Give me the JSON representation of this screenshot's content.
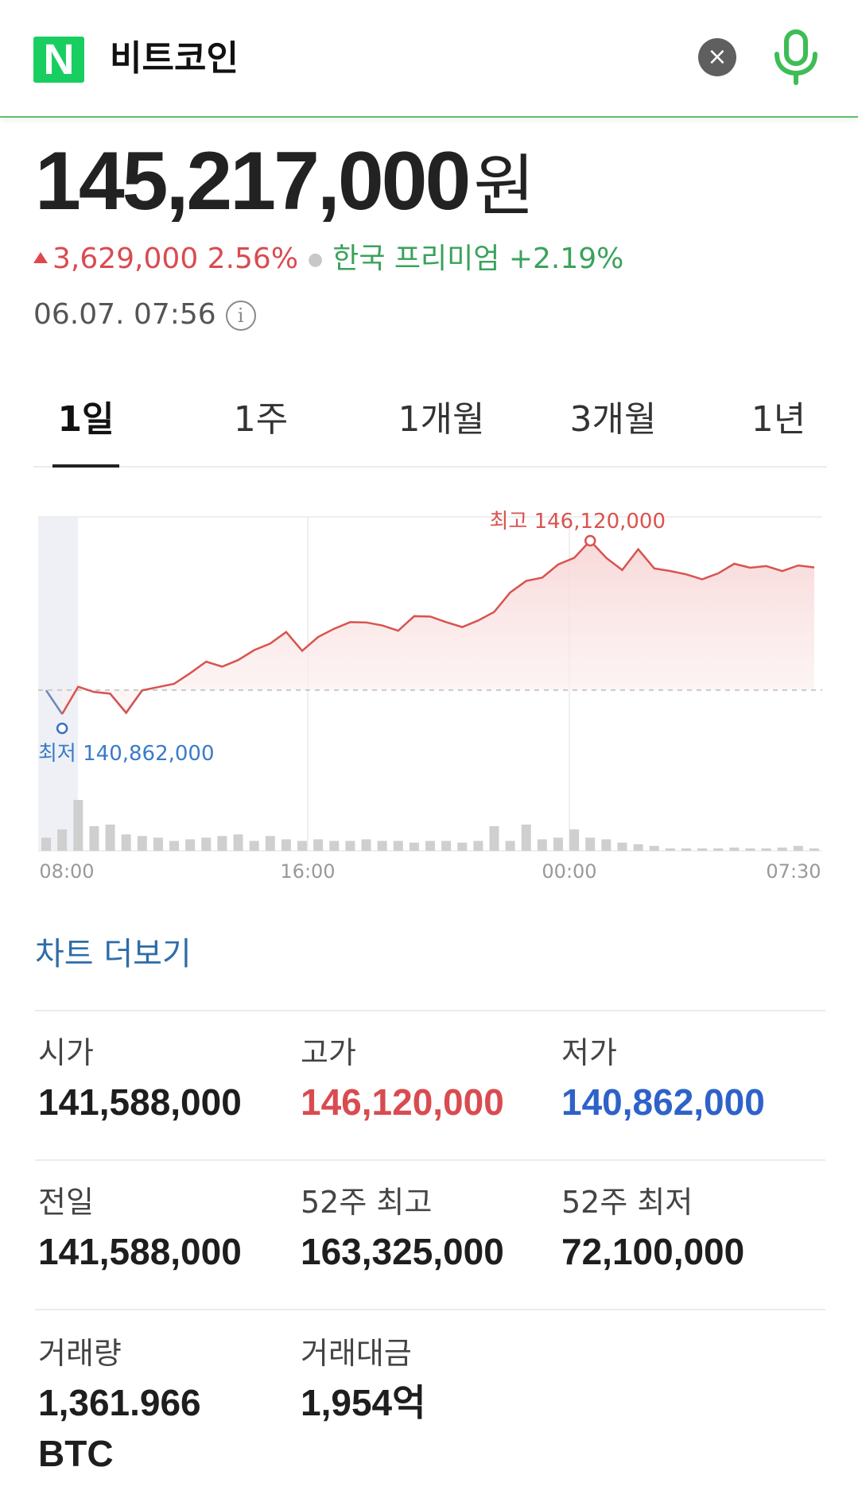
{
  "header": {
    "logo_letter": "N",
    "search_query": "비트코인",
    "clear_symbol": "×"
  },
  "price": {
    "value": "145,217,000",
    "unit": "원",
    "change": "3,629,000 2.56%",
    "premium": "한국 프리미엄 +2.19%",
    "timestamp": "06.07. 07:56",
    "info_symbol": "i"
  },
  "tabs": [
    {
      "label": "1일",
      "active": true
    },
    {
      "label": "1주",
      "active": false
    },
    {
      "label": "1개월",
      "active": false
    },
    {
      "label": "3개월",
      "active": false
    },
    {
      "label": "1년",
      "active": false
    }
  ],
  "chart_data": {
    "type": "line",
    "title": "",
    "high_label": "최고 146,120,000",
    "low_label": "최저 140,862,000",
    "high": 146120000,
    "low": 140862000,
    "x_ticks": [
      "08:00",
      "16:00",
      "00:00",
      "07:30"
    ],
    "x": [
      "06.06 07:30",
      "08:00",
      "08:30",
      "09:00",
      "09:30",
      "10:00",
      "10:30",
      "11:00",
      "11:30",
      "12:00",
      "12:30",
      "13:00",
      "13:30",
      "14:00",
      "14:30",
      "15:00",
      "15:30",
      "16:00",
      "16:30",
      "17:00",
      "17:30",
      "18:00",
      "18:30",
      "19:00",
      "19:30",
      "20:00",
      "20:30",
      "21:00",
      "21:30",
      "22:00",
      "22:30",
      "23:00",
      "23:30",
      "00:00",
      "00:30",
      "01:00",
      "01:30",
      "02:00",
      "02:30",
      "03:00",
      "03:30",
      "04:00",
      "04:30",
      "05:00",
      "05:30",
      "06:00",
      "06:30",
      "07:00",
      "07:30"
    ],
    "price": [
      141580000,
      140862000,
      141690000,
      141530000,
      141480000,
      140900000,
      141580000,
      141680000,
      141780000,
      142100000,
      142450000,
      142300000,
      142500000,
      142800000,
      143000000,
      143350000,
      142780000,
      143200000,
      143450000,
      143650000,
      143640000,
      143550000,
      143390000,
      143830000,
      143820000,
      143650000,
      143500000,
      143700000,
      143960000,
      144550000,
      144900000,
      145000000,
      145400000,
      145600000,
      146120000,
      145600000,
      145230000,
      145860000,
      145280000,
      145200000,
      145100000,
      144950000,
      145130000,
      145420000,
      145300000,
      145350000,
      145200000,
      145370000,
      145310000
    ],
    "volume": [
      0.8,
      1.3,
      3.1,
      1.5,
      1.6,
      1.0,
      0.9,
      0.8,
      0.6,
      0.7,
      0.8,
      0.9,
      1.0,
      0.6,
      0.9,
      0.7,
      0.6,
      0.7,
      0.6,
      0.6,
      0.7,
      0.6,
      0.6,
      0.5,
      0.6,
      0.6,
      0.5,
      0.6,
      1.5,
      0.6,
      1.6,
      0.7,
      0.8,
      1.3,
      0.8,
      0.7,
      0.5,
      0.4,
      0.3,
      0.1,
      0.1,
      0.1,
      0.1,
      0.2,
      0.1,
      0.1,
      0.2,
      0.3,
      0.1
    ],
    "reference_line": 141588000,
    "colors": {
      "line": "#d9534f",
      "fill": "#fbe6e6",
      "low_line": "#5c7fb8",
      "volume": "#cfcfcf",
      "low_text": "#3a7bc8",
      "high_text": "#d9534f"
    }
  },
  "more_link": "차트 더보기",
  "stats": [
    {
      "label": "시가",
      "value": "141,588,000",
      "tone": ""
    },
    {
      "label": "고가",
      "value": "146,120,000",
      "tone": "red"
    },
    {
      "label": "저가",
      "value": "140,862,000",
      "tone": "blue"
    },
    {
      "label": "전일",
      "value": "141,588,000",
      "tone": ""
    },
    {
      "label": "52주 최고",
      "value": "163,325,000",
      "tone": ""
    },
    {
      "label": "52주 최저",
      "value": "72,100,000",
      "tone": ""
    },
    {
      "label": "거래량",
      "value": "1,361.966",
      "value2": "BTC",
      "tone": ""
    },
    {
      "label": "거래대금",
      "value": "1,954억",
      "tone": ""
    }
  ]
}
